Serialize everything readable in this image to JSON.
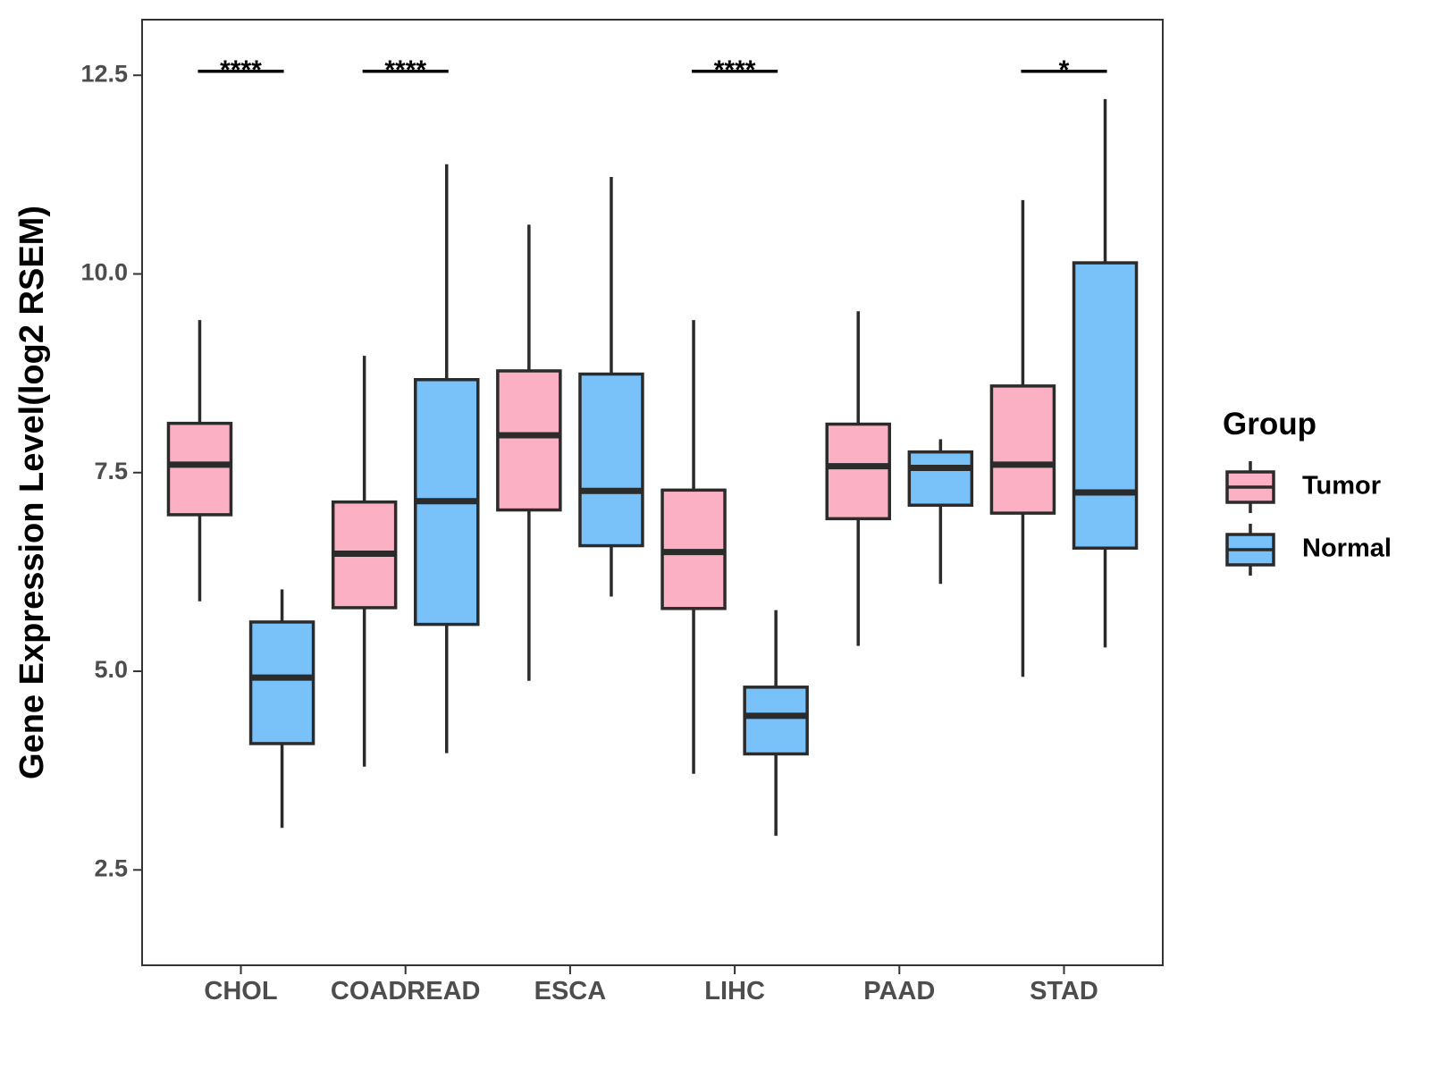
{
  "chart_data": {
    "type": "boxplot",
    "title": "",
    "xlabel": "",
    "ylabel": "Gene Expression Level(log2 RSEM)",
    "ylim": [
      1.3,
      13.2
    ],
    "yticks": [
      "2.5",
      "5.0",
      "7.5",
      "10.0",
      "12.5"
    ],
    "categories": [
      "CHOL",
      "COADREAD",
      "ESCA",
      "LIHC",
      "PAAD",
      "STAD"
    ],
    "legend": {
      "title": "Group",
      "position": "right",
      "entries": [
        {
          "name": "Tumor",
          "color": "#FBB1C3"
        },
        {
          "name": "Normal",
          "color": "#78C1F9"
        }
      ]
    },
    "series": [
      {
        "name": "Tumor",
        "color": "#FBB1C3",
        "boxes": [
          {
            "category": "CHOL",
            "min": 5.88,
            "q1": 6.97,
            "median": 7.6,
            "q3": 8.12,
            "max": 9.42
          },
          {
            "category": "COADREAD",
            "min": 3.8,
            "q1": 5.8,
            "median": 6.48,
            "q3": 7.13,
            "max": 8.97
          },
          {
            "category": "ESCA",
            "min": 4.88,
            "q1": 7.03,
            "median": 7.97,
            "q3": 8.78,
            "max": 10.62
          },
          {
            "category": "LIHC",
            "min": 3.71,
            "q1": 5.79,
            "median": 6.5,
            "q3": 7.28,
            "max": 9.42
          },
          {
            "category": "PAAD",
            "min": 5.32,
            "q1": 6.92,
            "median": 7.58,
            "q3": 8.11,
            "max": 9.53
          },
          {
            "category": "STAD",
            "min": 4.93,
            "q1": 6.99,
            "median": 7.6,
            "q3": 8.59,
            "max": 10.93
          }
        ]
      },
      {
        "name": "Normal",
        "color": "#78C1F9",
        "boxes": [
          {
            "category": "CHOL",
            "min": 3.03,
            "q1": 4.09,
            "median": 4.92,
            "q3": 5.62,
            "max": 6.03
          },
          {
            "category": "COADREAD",
            "min": 3.97,
            "q1": 5.59,
            "median": 7.14,
            "q3": 8.67,
            "max": 11.38
          },
          {
            "category": "ESCA",
            "min": 5.94,
            "q1": 6.58,
            "median": 7.27,
            "q3": 8.74,
            "max": 11.22
          },
          {
            "category": "LIHC",
            "min": 2.93,
            "q1": 3.96,
            "median": 4.44,
            "q3": 4.8,
            "max": 5.77
          },
          {
            "category": "PAAD",
            "min": 6.1,
            "q1": 7.09,
            "median": 7.56,
            "q3": 7.76,
            "max": 7.92
          },
          {
            "category": "STAD",
            "min": 5.3,
            "q1": 6.55,
            "median": 7.25,
            "q3": 10.14,
            "max": 12.2
          }
        ]
      }
    ],
    "annotations": [
      {
        "category": "CHOL",
        "label": "****",
        "y": 12.55
      },
      {
        "category": "COADREAD",
        "label": "****",
        "y": 12.55
      },
      {
        "category": "LIHC",
        "label": "****",
        "y": 12.55
      },
      {
        "category": "STAD",
        "label": "*",
        "y": 12.55
      }
    ],
    "grid": false
  }
}
